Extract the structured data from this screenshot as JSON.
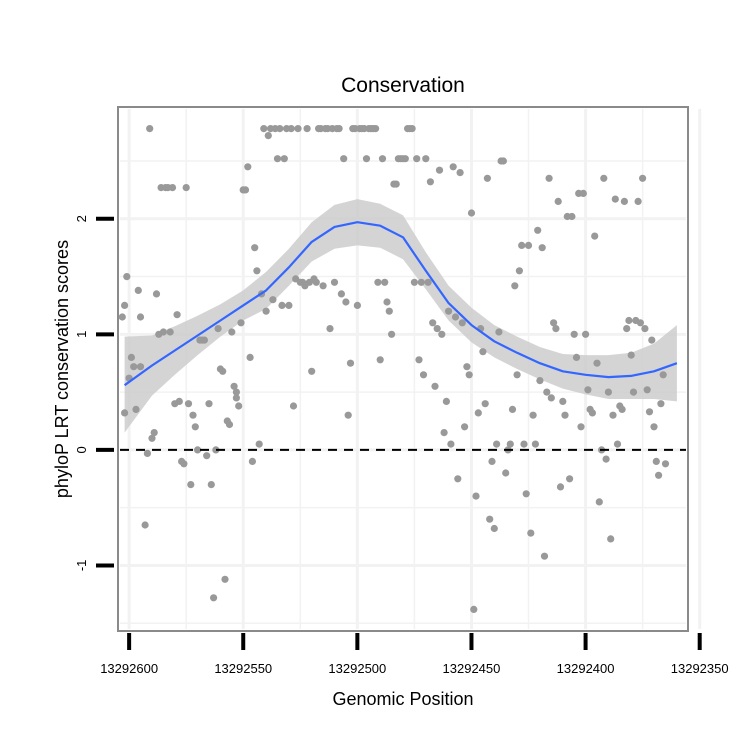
{
  "chart_data": {
    "type": "scatter",
    "title": "Conservation",
    "xlabel": "Genomic Position",
    "ylabel": "phyloP LRT conservation scores",
    "x_reversed": true,
    "xlim": [
      13292356,
      13292604
    ],
    "ylim": [
      -1.55,
      2.95
    ],
    "x_ticks": [
      13292600,
      13292550,
      13292500,
      13292450,
      13292400,
      13292350
    ],
    "x_tick_labels": [
      "13292600",
      "13292550",
      "13292500",
      "13292450",
      "13292400",
      "13292350"
    ],
    "y_ticks": [
      -1,
      0,
      1,
      2
    ],
    "y_tick_labels": [
      "-1",
      "0",
      "1",
      "2"
    ],
    "reference_line": {
      "y": 0,
      "style": "dashed",
      "color": "#000000"
    },
    "grid": true,
    "colors": {
      "points": "#999999",
      "smooth": "#3366FF",
      "ribbon": "#CCCCCC",
      "panel_border": "#8a8a8a",
      "grid": "#f2f2f2"
    },
    "points": [
      [
        13292603,
        1.15
      ],
      [
        13292602,
        1.25
      ],
      [
        13292602,
        0.32
      ],
      [
        13292601,
        1.5
      ],
      [
        13292600,
        0.62
      ],
      [
        13292599,
        0.8
      ],
      [
        13292598,
        0.72
      ],
      [
        13292597,
        0.35
      ],
      [
        13292596,
        1.38
      ],
      [
        13292595,
        0.72
      ],
      [
        13292595,
        1.15
      ],
      [
        13292593,
        -0.65
      ],
      [
        13292592,
        -0.03
      ],
      [
        13292591,
        2.78
      ],
      [
        13292590,
        0.1
      ],
      [
        13292589,
        0.15
      ],
      [
        13292588,
        1.35
      ],
      [
        13292587,
        1.0
      ],
      [
        13292586,
        2.27
      ],
      [
        13292585,
        1.02
      ],
      [
        13292584,
        2.27
      ],
      [
        13292583,
        2.27
      ],
      [
        13292582,
        1.02
      ],
      [
        13292581,
        2.27
      ],
      [
        13292580,
        0.4
      ],
      [
        13292579,
        1.17
      ],
      [
        13292578,
        0.42
      ],
      [
        13292577,
        -0.1
      ],
      [
        13292576,
        -0.12
      ],
      [
        13292575,
        2.27
      ],
      [
        13292574,
        0.4
      ],
      [
        13292573,
        -0.3
      ],
      [
        13292572,
        0.3
      ],
      [
        13292571,
        0.2
      ],
      [
        13292570,
        0.0
      ],
      [
        13292569,
        0.95
      ],
      [
        13292568,
        0.95
      ],
      [
        13292567,
        0.95
      ],
      [
        13292566,
        -0.05
      ],
      [
        13292565,
        0.4
      ],
      [
        13292564,
        -0.3
      ],
      [
        13292563,
        -1.28
      ],
      [
        13292562,
        0.0
      ],
      [
        13292561,
        1.05
      ],
      [
        13292560,
        0.7
      ],
      [
        13292559,
        0.68
      ],
      [
        13292558,
        -1.12
      ],
      [
        13292557,
        0.25
      ],
      [
        13292556,
        0.22
      ],
      [
        13292555,
        1.02
      ],
      [
        13292554,
        0.55
      ],
      [
        13292553,
        0.5
      ],
      [
        13292553,
        0.45
      ],
      [
        13292552,
        0.38
      ],
      [
        13292551,
        1.1
      ],
      [
        13292550,
        2.25
      ],
      [
        13292549,
        2.25
      ],
      [
        13292548,
        2.45
      ],
      [
        13292547,
        0.8
      ],
      [
        13292546,
        -0.1
      ],
      [
        13292545,
        1.75
      ],
      [
        13292544,
        1.55
      ],
      [
        13292543,
        0.05
      ],
      [
        13292542,
        1.35
      ],
      [
        13292541,
        2.78
      ],
      [
        13292540,
        1.2
      ],
      [
        13292539,
        2.72
      ],
      [
        13292538,
        2.78
      ],
      [
        13292537,
        1.3
      ],
      [
        13292536,
        2.78
      ],
      [
        13292535,
        2.52
      ],
      [
        13292534,
        2.78
      ],
      [
        13292533,
        1.25
      ],
      [
        13292532,
        2.52
      ],
      [
        13292531,
        2.78
      ],
      [
        13292530,
        1.25
      ],
      [
        13292529,
        2.78
      ],
      [
        13292528,
        0.38
      ],
      [
        13292527,
        1.48
      ],
      [
        13292526,
        2.78
      ],
      [
        13292525,
        1.45
      ],
      [
        13292524,
        1.45
      ],
      [
        13292523,
        1.42
      ],
      [
        13292522,
        2.78
      ],
      [
        13292521,
        1.45
      ],
      [
        13292520,
        0.68
      ],
      [
        13292519,
        1.48
      ],
      [
        13292518,
        1.45
      ],
      [
        13292517,
        2.78
      ],
      [
        13292516,
        2.78
      ],
      [
        13292515,
        1.42
      ],
      [
        13292514,
        2.78
      ],
      [
        13292513,
        2.78
      ],
      [
        13292512,
        1.05
      ],
      [
        13292511,
        2.78
      ],
      [
        13292510,
        1.45
      ],
      [
        13292509,
        2.78
      ],
      [
        13292508,
        2.78
      ],
      [
        13292507,
        1.35
      ],
      [
        13292506,
        2.52
      ],
      [
        13292505,
        1.28
      ],
      [
        13292504,
        0.3
      ],
      [
        13292503,
        0.75
      ],
      [
        13292502,
        2.78
      ],
      [
        13292501,
        2.78
      ],
      [
        13292500,
        1.25
      ],
      [
        13292499,
        2.78
      ],
      [
        13292498,
        2.78
      ],
      [
        13292497,
        2.78
      ],
      [
        13292496,
        2.52
      ],
      [
        13292495,
        2.78
      ],
      [
        13292494,
        2.78
      ],
      [
        13292493,
        2.78
      ],
      [
        13292492,
        2.78
      ],
      [
        13292491,
        1.45
      ],
      [
        13292490,
        0.78
      ],
      [
        13292489,
        2.52
      ],
      [
        13292488,
        1.45
      ],
      [
        13292487,
        1.28
      ],
      [
        13292486,
        1.2
      ],
      [
        13292485,
        1.0
      ],
      [
        13292484,
        2.3
      ],
      [
        13292483,
        2.3
      ],
      [
        13292482,
        2.52
      ],
      [
        13292481,
        2.52
      ],
      [
        13292480,
        2.52
      ],
      [
        13292479,
        2.52
      ],
      [
        13292478,
        2.78
      ],
      [
        13292477,
        2.78
      ],
      [
        13292476,
        2.78
      ],
      [
        13292475,
        1.45
      ],
      [
        13292474,
        2.52
      ],
      [
        13292473,
        0.78
      ],
      [
        13292472,
        1.45
      ],
      [
        13292471,
        0.65
      ],
      [
        13292470,
        2.52
      ],
      [
        13292469,
        1.45
      ],
      [
        13292468,
        2.32
      ],
      [
        13292467,
        1.1
      ],
      [
        13292466,
        0.55
      ],
      [
        13292465,
        1.05
      ],
      [
        13292464,
        2.42
      ],
      [
        13292463,
        1.0
      ],
      [
        13292462,
        0.15
      ],
      [
        13292461,
        0.42
      ],
      [
        13292460,
        1.2
      ],
      [
        13292459,
        0.05
      ],
      [
        13292458,
        2.45
      ],
      [
        13292457,
        1.15
      ],
      [
        13292456,
        -0.25
      ],
      [
        13292455,
        2.4
      ],
      [
        13292454,
        1.1
      ],
      [
        13292453,
        0.2
      ],
      [
        13292452,
        0.72
      ],
      [
        13292451,
        0.65
      ],
      [
        13292450,
        2.05
      ],
      [
        13292449,
        -1.38
      ],
      [
        13292448,
        -0.4
      ],
      [
        13292447,
        0.32
      ],
      [
        13292446,
        1.05
      ],
      [
        13292445,
        0.85
      ],
      [
        13292444,
        0.4
      ],
      [
        13292443,
        2.35
      ],
      [
        13292442,
        -0.6
      ],
      [
        13292441,
        -0.1
      ],
      [
        13292440,
        -0.68
      ],
      [
        13292439,
        0.05
      ],
      [
        13292438,
        1.02
      ],
      [
        13292437,
        2.5
      ],
      [
        13292436,
        2.5
      ],
      [
        13292435,
        -0.2
      ],
      [
        13292434,
        0.0
      ],
      [
        13292433,
        0.05
      ],
      [
        13292432,
        0.35
      ],
      [
        13292431,
        1.42
      ],
      [
        13292430,
        0.65
      ],
      [
        13292429,
        1.55
      ],
      [
        13292428,
        1.77
      ],
      [
        13292427,
        0.05
      ],
      [
        13292426,
        -0.38
      ],
      [
        13292425,
        1.77
      ],
      [
        13292424,
        -0.72
      ],
      [
        13292423,
        0.3
      ],
      [
        13292422,
        0.05
      ],
      [
        13292421,
        1.9
      ],
      [
        13292420,
        0.6
      ],
      [
        13292419,
        1.75
      ],
      [
        13292418,
        -0.92
      ],
      [
        13292417,
        0.5
      ],
      [
        13292416,
        2.35
      ],
      [
        13292415,
        0.45
      ],
      [
        13292414,
        1.1
      ],
      [
        13292413,
        1.05
      ],
      [
        13292412,
        2.15
      ],
      [
        13292411,
        -0.32
      ],
      [
        13292410,
        0.42
      ],
      [
        13292409,
        0.3
      ],
      [
        13292408,
        2.02
      ],
      [
        13292407,
        -0.25
      ],
      [
        13292406,
        2.02
      ],
      [
        13292405,
        1.0
      ],
      [
        13292404,
        0.8
      ],
      [
        13292403,
        2.22
      ],
      [
        13292402,
        0.2
      ],
      [
        13292401,
        2.22
      ],
      [
        13292400,
        1.0
      ],
      [
        13292399,
        0.52
      ],
      [
        13292398,
        0.35
      ],
      [
        13292397,
        0.32
      ],
      [
        13292396,
        1.85
      ],
      [
        13292395,
        0.75
      ],
      [
        13292394,
        -0.45
      ],
      [
        13292393,
        0.0
      ],
      [
        13292392,
        2.35
      ],
      [
        13292391,
        -0.08
      ],
      [
        13292390,
        0.5
      ],
      [
        13292389,
        -0.77
      ],
      [
        13292388,
        0.3
      ],
      [
        13292387,
        2.17
      ],
      [
        13292386,
        0.05
      ],
      [
        13292385,
        0.38
      ],
      [
        13292384,
        0.35
      ],
      [
        13292383,
        2.15
      ],
      [
        13292382,
        1.05
      ],
      [
        13292381,
        1.12
      ],
      [
        13292380,
        0.82
      ],
      [
        13292379,
        0.5
      ],
      [
        13292378,
        1.12
      ],
      [
        13292377,
        2.15
      ],
      [
        13292376,
        1.1
      ],
      [
        13292375,
        2.35
      ],
      [
        13292374,
        1.05
      ],
      [
        13292373,
        0.52
      ],
      [
        13292372,
        0.33
      ],
      [
        13292371,
        0.95
      ],
      [
        13292370,
        0.2
      ],
      [
        13292369,
        -0.1
      ],
      [
        13292368,
        -0.22
      ],
      [
        13292367,
        0.4
      ],
      [
        13292366,
        0.65
      ],
      [
        13292365,
        -0.12
      ]
    ],
    "smooth": {
      "x": [
        13292602,
        13292590,
        13292580,
        13292570,
        13292560,
        13292550,
        13292540,
        13292530,
        13292520,
        13292510,
        13292500,
        13292490,
        13292480,
        13292470,
        13292460,
        13292450,
        13292440,
        13292430,
        13292420,
        13292410,
        13292400,
        13292390,
        13292380,
        13292370,
        13292360
      ],
      "y": [
        0.56,
        0.73,
        0.86,
        0.99,
        1.12,
        1.25,
        1.38,
        1.58,
        1.8,
        1.93,
        1.97,
        1.94,
        1.84,
        1.55,
        1.27,
        1.08,
        0.94,
        0.84,
        0.75,
        0.68,
        0.65,
        0.63,
        0.64,
        0.68,
        0.75
      ],
      "lower": [
        0.15,
        0.47,
        0.65,
        0.82,
        0.98,
        1.12,
        1.22,
        1.42,
        1.63,
        1.74,
        1.77,
        1.75,
        1.65,
        1.39,
        1.12,
        0.93,
        0.8,
        0.7,
        0.61,
        0.53,
        0.48,
        0.44,
        0.44,
        0.44,
        0.42
      ],
      "upper": [
        0.98,
        0.99,
        1.07,
        1.16,
        1.26,
        1.38,
        1.54,
        1.74,
        1.97,
        2.12,
        2.17,
        2.13,
        2.03,
        1.71,
        1.42,
        1.23,
        1.08,
        0.98,
        0.89,
        0.83,
        0.82,
        0.82,
        0.84,
        0.92,
        1.08
      ]
    }
  }
}
